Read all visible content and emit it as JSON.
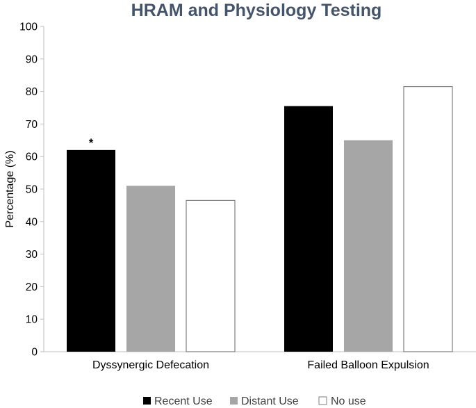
{
  "chart_data": {
    "type": "bar",
    "title": "HRAM and Physiology Testing",
    "xlabel": "",
    "ylabel": "Percentage (%)",
    "ylim": [
      0,
      100
    ],
    "yticks": [
      0,
      10,
      20,
      30,
      40,
      50,
      60,
      70,
      80,
      90,
      100
    ],
    "categories": [
      "Dyssynergic Defecation",
      "Failed Balloon Expulsion"
    ],
    "series": [
      {
        "name": "Recent Use",
        "values": [
          62,
          75.5
        ],
        "color": "#000000"
      },
      {
        "name": "Distant Use",
        "values": [
          51,
          65
        ],
        "color": "#a6a6a6"
      },
      {
        "name": "No use",
        "values": [
          46.5,
          81.5
        ],
        "color": "#ffffff"
      }
    ],
    "annotations": [
      {
        "text": "*",
        "category_index": 0,
        "series_index": 0
      }
    ],
    "legend": "bottom",
    "grid": false
  }
}
